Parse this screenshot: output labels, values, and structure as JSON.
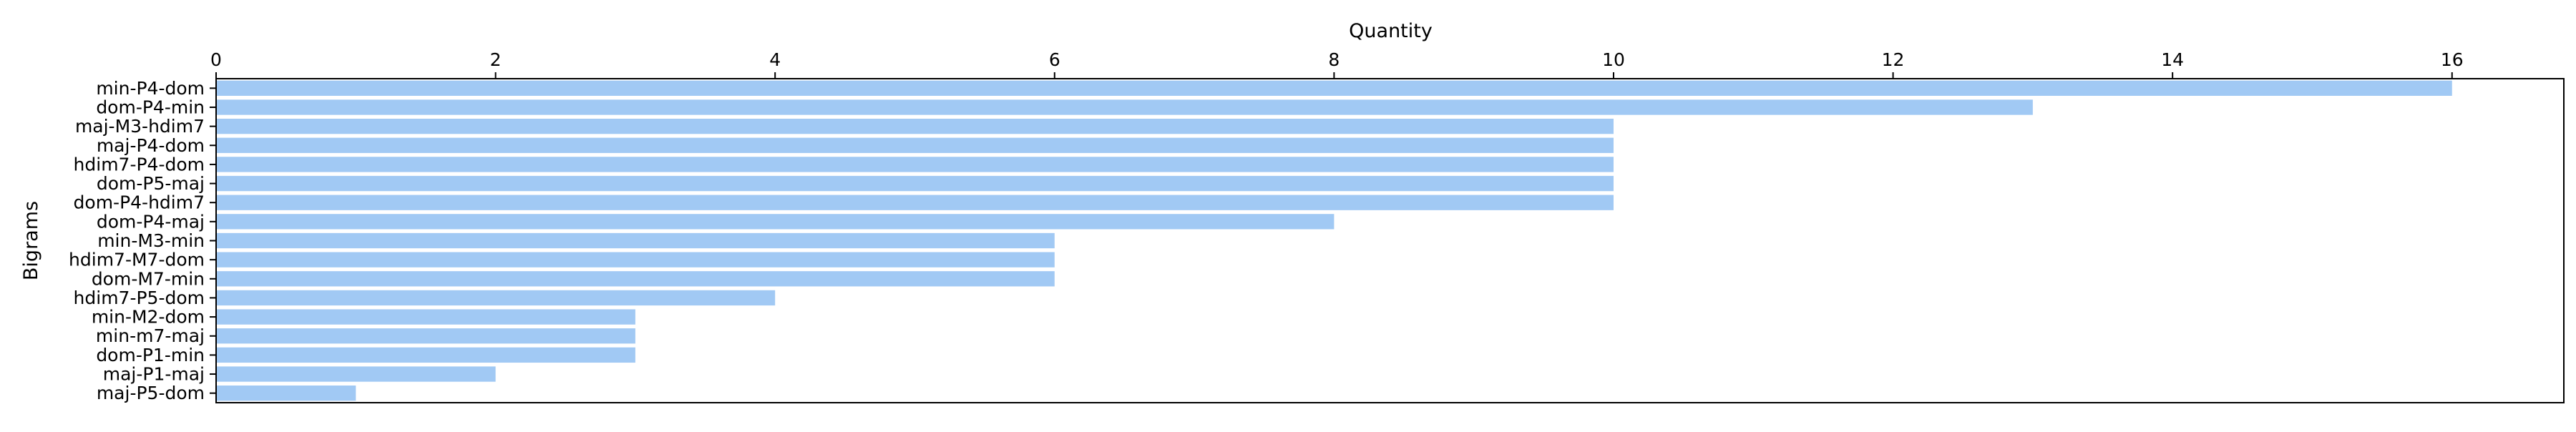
{
  "chart_data": {
    "type": "bar",
    "orientation": "horizontal",
    "title": "",
    "xlabel": "Quantity",
    "ylabel": "Bigrams",
    "x_axis_position": "top",
    "xlim": [
      0,
      16.8
    ],
    "xticks": [
      0,
      2,
      4,
      6,
      8,
      10,
      12,
      14,
      16
    ],
    "grid": false,
    "legend": "none",
    "bar_color": "#a1c9f4",
    "categories": [
      "min-P4-dom",
      "dom-P4-min",
      "maj-M3-hdim7",
      "maj-P4-dom",
      "hdim7-P4-dom",
      "dom-P5-maj",
      "dom-P4-hdim7",
      "dom-P4-maj",
      "min-M3-min",
      "hdim7-M7-dom",
      "dom-M7-min",
      "hdim7-P5-dom",
      "min-M2-dom",
      "min-m7-maj",
      "dom-P1-min",
      "maj-P1-maj",
      "maj-P5-dom"
    ],
    "values": [
      16,
      13,
      10,
      10,
      10,
      10,
      10,
      8,
      6,
      6,
      6,
      4,
      3,
      3,
      3,
      2,
      1
    ]
  }
}
